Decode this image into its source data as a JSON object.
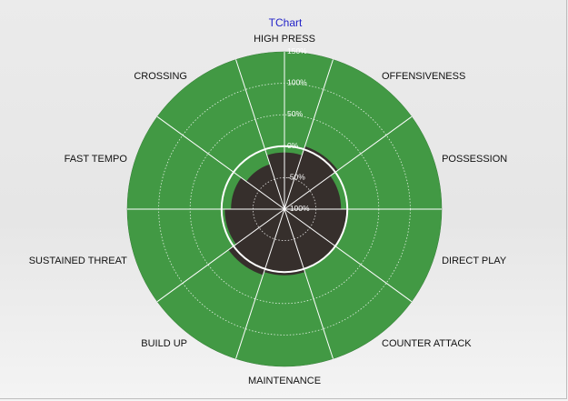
{
  "chart_data": {
    "type": "polar-radar",
    "title": "TChart",
    "categories": [
      "HIGH PRESS",
      "OFFENSIVENESS",
      "POSSESSION",
      "DIRECT PLAY",
      "COUNTER ATTACK",
      "MAINTENANCE",
      "BUILD UP",
      "SUSTAINED THREAT",
      "FAST TEMPO",
      "CROSSING"
    ],
    "series": [
      {
        "values": [
          -10,
          5,
          -10,
          0,
          0,
          5,
          10,
          -5,
          -15,
          -25
        ]
      }
    ],
    "radial_ticks": [
      "150%",
      "100%",
      "50%",
      "0%",
      "-50%",
      "-100%"
    ],
    "radial_tick_values": [
      150,
      100,
      50,
      0,
      -50,
      -100
    ],
    "rlim": [
      -100,
      150
    ],
    "reference_value": 0,
    "grid": true,
    "colors": {
      "background_ring": "#429944",
      "series_fill": "#362f2c",
      "grid": "#ffffff",
      "title": "#2323c8"
    }
  }
}
